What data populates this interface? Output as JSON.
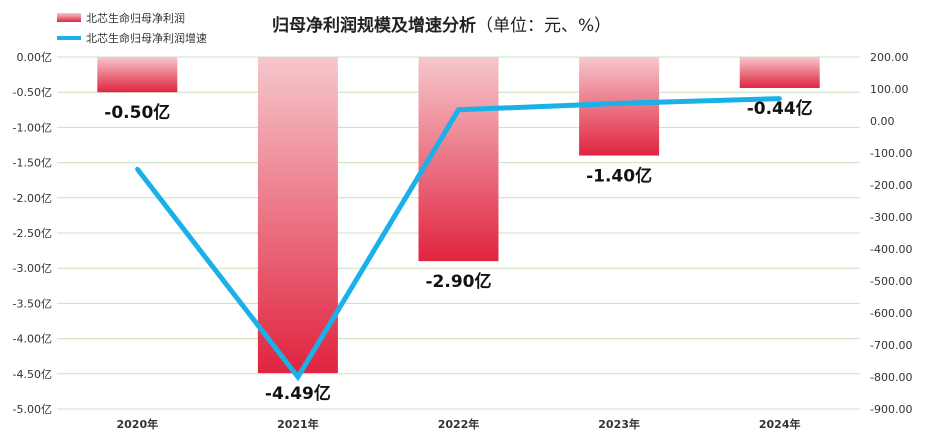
{
  "chart_data": {
    "type": "bar+line",
    "title": "归母净利润规模及增速分析",
    "subtitle": "（单位：元、%）",
    "categories": [
      "2020年",
      "2021年",
      "2022年",
      "2023年",
      "2024年"
    ],
    "series": [
      {
        "name": "北芯生命归母净利润",
        "type": "bar",
        "axis": "left",
        "values": [
          -0.5,
          -4.49,
          -2.9,
          -1.4,
          -0.44
        ],
        "labels": [
          "-0.50亿",
          "-4.49亿",
          "-2.90亿",
          "-1.40亿",
          "-0.44亿"
        ]
      },
      {
        "name": "北芯生命归母净利润增速",
        "type": "line",
        "axis": "right",
        "values": [
          -150,
          -800,
          35,
          55,
          70
        ]
      }
    ],
    "y_left": {
      "ylim": [
        -5.0,
        0.0
      ],
      "ticks": [
        "0.00亿",
        "-0.50亿",
        "-1.00亿",
        "-1.50亿",
        "-2.00亿",
        "-2.50亿",
        "-3.00亿",
        "-3.50亿",
        "-4.00亿",
        "-4.50亿",
        "-5.00亿"
      ]
    },
    "y_right": {
      "ylim": [
        -900,
        200
      ],
      "ticks": [
        "200.00",
        "100.00",
        "0.00",
        "-100.00",
        "-200.00",
        "-300.00",
        "-400.00",
        "-500.00",
        "-600.00",
        "-700.00",
        "-800.00",
        "-900.00"
      ]
    },
    "grid": true,
    "legend_position": "top-left",
    "colors": {
      "bar_top": "#f6c7cc",
      "bar_bottom": "#e0243f",
      "line": "#1ab0e8",
      "grid": "#c8e0c0"
    }
  }
}
